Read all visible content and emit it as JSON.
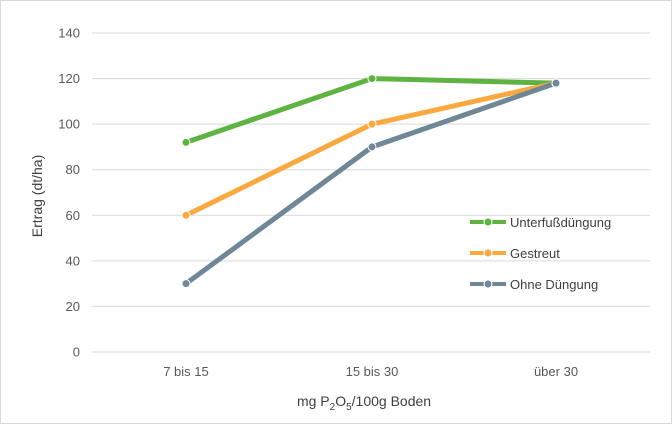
{
  "chart_data": {
    "type": "line",
    "categories": [
      "7 bis 15",
      "15 bis 30",
      "über 30"
    ],
    "series": [
      {
        "name": "Unterfußdüngung",
        "values": [
          92,
          120,
          118
        ],
        "color": "#5eb342"
      },
      {
        "name": "Gestreut",
        "values": [
          60,
          100,
          118
        ],
        "color": "#f9a940"
      },
      {
        "name": "Ohne Düngung",
        "values": [
          30,
          90,
          118
        ],
        "color": "#6f8796"
      }
    ],
    "ylabel": "Ertrag (dt/ha)",
    "xlabel": {
      "prefix": "mg P",
      "sub1": "2",
      "mid": "O",
      "sub2": "5",
      "suffix": "/100g Boden"
    },
    "ylim": [
      0,
      140
    ],
    "yticks": [
      0,
      20,
      40,
      60,
      80,
      100,
      120,
      140
    ],
    "grid": true,
    "legend_position": "right"
  }
}
